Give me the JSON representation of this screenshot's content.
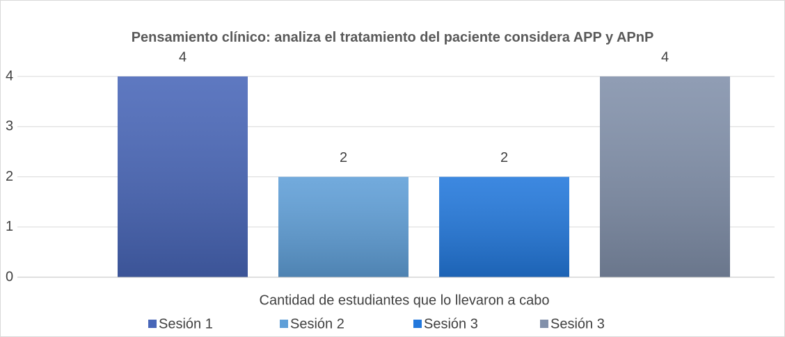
{
  "chart_data": {
    "type": "bar",
    "title": "Pensamiento clínico: analiza el tratamiento del paciente considera APP y APnP",
    "categories": [
      "Cantidad de estudiantes que lo llevaron a cabo"
    ],
    "series": [
      {
        "name": "Sesión 1",
        "color": "#4866b8",
        "values": [
          4
        ]
      },
      {
        "name": "Sesión 2",
        "color": "#5f9fd8",
        "values": [
          2
        ]
      },
      {
        "name": "Sesión 3",
        "color": "#2278dc",
        "values": [
          2
        ]
      },
      {
        "name": "Sesión 3",
        "color": "#8190aa",
        "values": [
          4
        ]
      }
    ],
    "ylim": [
      0,
      4
    ],
    "yticks": [
      0,
      1,
      2,
      3,
      4
    ],
    "grid": true,
    "legend": "bottom"
  }
}
